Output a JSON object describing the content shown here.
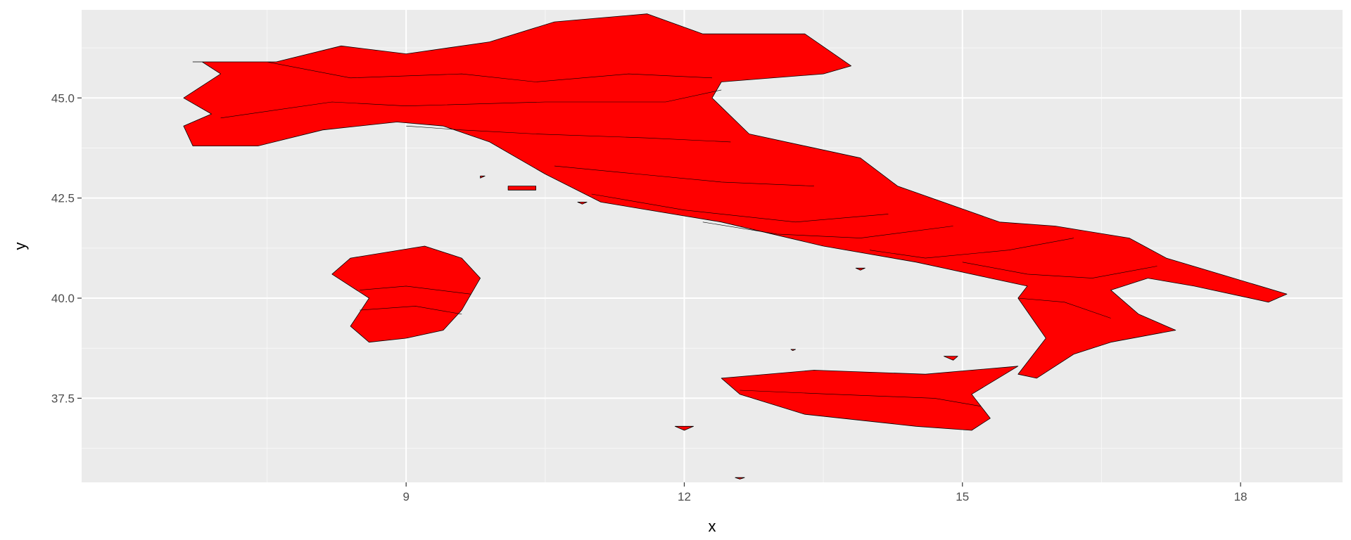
{
  "chart_data": {
    "type": "map",
    "title": "",
    "xlabel": "x",
    "ylabel": "y",
    "x_ticks": [
      9,
      12,
      15,
      18
    ],
    "y_ticks": [
      37.5,
      40.0,
      42.5,
      45.0
    ],
    "y_tick_labels": [
      "37.5",
      "40.0",
      "42.5",
      "45.0"
    ],
    "x_tick_labels": [
      "9",
      "12",
      "15",
      "18"
    ],
    "xlim": [
      5.5,
      19.1
    ],
    "ylim": [
      35.4,
      47.2
    ],
    "grid": true,
    "fill_color": "#ff0000",
    "border_color": "#000000",
    "panel_color": "#ebebeb",
    "regions": [
      {
        "name": "mainland",
        "lon": [
          6.7,
          7.6,
          8.3,
          9.0,
          9.9,
          10.6,
          11.6,
          12.2,
          13.3,
          13.8,
          13.5,
          12.4,
          12.3,
          12.7,
          13.9,
          14.3,
          15.4,
          16.0,
          16.8,
          17.2,
          18.5,
          18.3,
          17.5,
          17.0,
          16.6,
          16.9,
          17.3,
          16.6,
          16.2,
          15.8,
          15.6,
          15.9,
          15.6,
          15.7,
          15.3,
          14.5,
          13.5,
          12.4,
          11.1,
          10.5,
          9.9,
          9.4,
          8.9,
          8.1,
          7.4,
          6.7,
          6.6,
          6.9,
          6.6,
          7.0,
          6.8
        ],
        "lat": [
          45.9,
          45.9,
          46.3,
          46.1,
          46.4,
          46.9,
          47.1,
          46.6,
          46.6,
          45.8,
          45.6,
          45.4,
          45.0,
          44.1,
          43.5,
          42.8,
          41.9,
          41.8,
          41.5,
          41.0,
          40.1,
          39.9,
          40.3,
          40.5,
          40.2,
          39.6,
          39.2,
          38.9,
          38.6,
          38.0,
          38.1,
          39.0,
          40.0,
          40.3,
          40.5,
          40.9,
          41.3,
          41.9,
          42.4,
          43.1,
          43.9,
          44.3,
          44.4,
          44.2,
          43.8,
          43.8,
          44.3,
          44.6,
          45.0,
          45.6,
          45.9
        ]
      },
      {
        "name": "sardinia",
        "lon": [
          8.4,
          9.2,
          9.6,
          9.8,
          9.6,
          9.4,
          9.0,
          8.6,
          8.4,
          8.6,
          8.2,
          8.4
        ],
        "lat": [
          41.0,
          41.3,
          41.0,
          40.5,
          39.7,
          39.2,
          39.0,
          38.9,
          39.3,
          40.0,
          40.6,
          41.0
        ]
      },
      {
        "name": "sicily",
        "lon": [
          12.4,
          13.4,
          14.6,
          15.6,
          15.1,
          15.3,
          15.1,
          14.5,
          13.3,
          12.6,
          12.4
        ],
        "lat": [
          38.0,
          38.2,
          38.1,
          38.3,
          37.6,
          37.0,
          36.7,
          36.8,
          37.1,
          37.6,
          38.0
        ]
      },
      {
        "name": "elba",
        "lon": [
          10.1,
          10.4,
          10.4,
          10.1,
          10.1
        ],
        "lat": [
          42.8,
          42.8,
          42.7,
          42.7,
          42.8
        ]
      },
      {
        "name": "pantelleria",
        "lon": [
          11.9,
          12.1,
          12.0,
          11.9
        ],
        "lat": [
          36.8,
          36.8,
          36.7,
          36.8
        ]
      },
      {
        "name": "capraia",
        "lon": [
          9.8,
          9.85,
          9.8,
          9.8
        ],
        "lat": [
          43.05,
          43.05,
          43.0,
          43.05
        ]
      },
      {
        "name": "giglio",
        "lon": [
          10.85,
          10.95,
          10.9,
          10.85
        ],
        "lat": [
          42.4,
          42.4,
          42.35,
          42.4
        ]
      },
      {
        "name": "ischia",
        "lon": [
          13.85,
          13.95,
          13.9,
          13.85
        ],
        "lat": [
          40.75,
          40.75,
          40.7,
          40.75
        ]
      },
      {
        "name": "lampedusa",
        "lon": [
          12.55,
          12.65,
          12.6,
          12.55
        ],
        "lat": [
          35.52,
          35.52,
          35.48,
          35.52
        ]
      },
      {
        "name": "ustica",
        "lon": [
          13.15,
          13.2,
          13.17,
          13.15
        ],
        "lat": [
          38.72,
          38.72,
          38.69,
          38.72
        ]
      },
      {
        "name": "aeolian",
        "lon": [
          14.8,
          14.95,
          14.9,
          14.8
        ],
        "lat": [
          38.55,
          38.55,
          38.45,
          38.55
        ]
      }
    ],
    "internal_borders": [
      {
        "lon": [
          7.5,
          8.4,
          9.6,
          10.4,
          11.4,
          12.3
        ],
        "lat": [
          45.9,
          45.5,
          45.6,
          45.4,
          45.6,
          45.5
        ]
      },
      {
        "lon": [
          7.0,
          8.2,
          9.0,
          10.5,
          11.8,
          12.4
        ],
        "lat": [
          44.5,
          44.9,
          44.8,
          44.9,
          44.9,
          45.2
        ]
      },
      {
        "lon": [
          9.0,
          9.6,
          10.4,
          11.6,
          12.5
        ],
        "lat": [
          44.3,
          44.2,
          44.1,
          44.0,
          43.9
        ]
      },
      {
        "lon": [
          10.6,
          11.5,
          12.4,
          13.4
        ],
        "lat": [
          43.3,
          43.1,
          42.9,
          42.8
        ]
      },
      {
        "lon": [
          11.0,
          12.0,
          13.2,
          14.2
        ],
        "lat": [
          42.6,
          42.2,
          41.9,
          42.1
        ]
      },
      {
        "lon": [
          12.2,
          13.0,
          13.9,
          14.9
        ],
        "lat": [
          41.9,
          41.6,
          41.5,
          41.8
        ]
      },
      {
        "lon": [
          14.0,
          14.6,
          15.5,
          16.2
        ],
        "lat": [
          41.2,
          41.0,
          41.2,
          41.5
        ]
      },
      {
        "lon": [
          15.0,
          15.7,
          16.4,
          17.1
        ],
        "lat": [
          40.9,
          40.6,
          40.5,
          40.8
        ]
      },
      {
        "lon": [
          15.6,
          16.1,
          16.6
        ],
        "lat": [
          40.0,
          39.9,
          39.5
        ]
      },
      {
        "lon": [
          12.6,
          13.6,
          14.7,
          15.2
        ],
        "lat": [
          37.7,
          37.6,
          37.5,
          37.3
        ]
      },
      {
        "lon": [
          8.5,
          9.0,
          9.7
        ],
        "lat": [
          40.2,
          40.3,
          40.1
        ]
      },
      {
        "lon": [
          8.5,
          9.1,
          9.6
        ],
        "lat": [
          39.7,
          39.8,
          39.6
        ]
      }
    ]
  }
}
